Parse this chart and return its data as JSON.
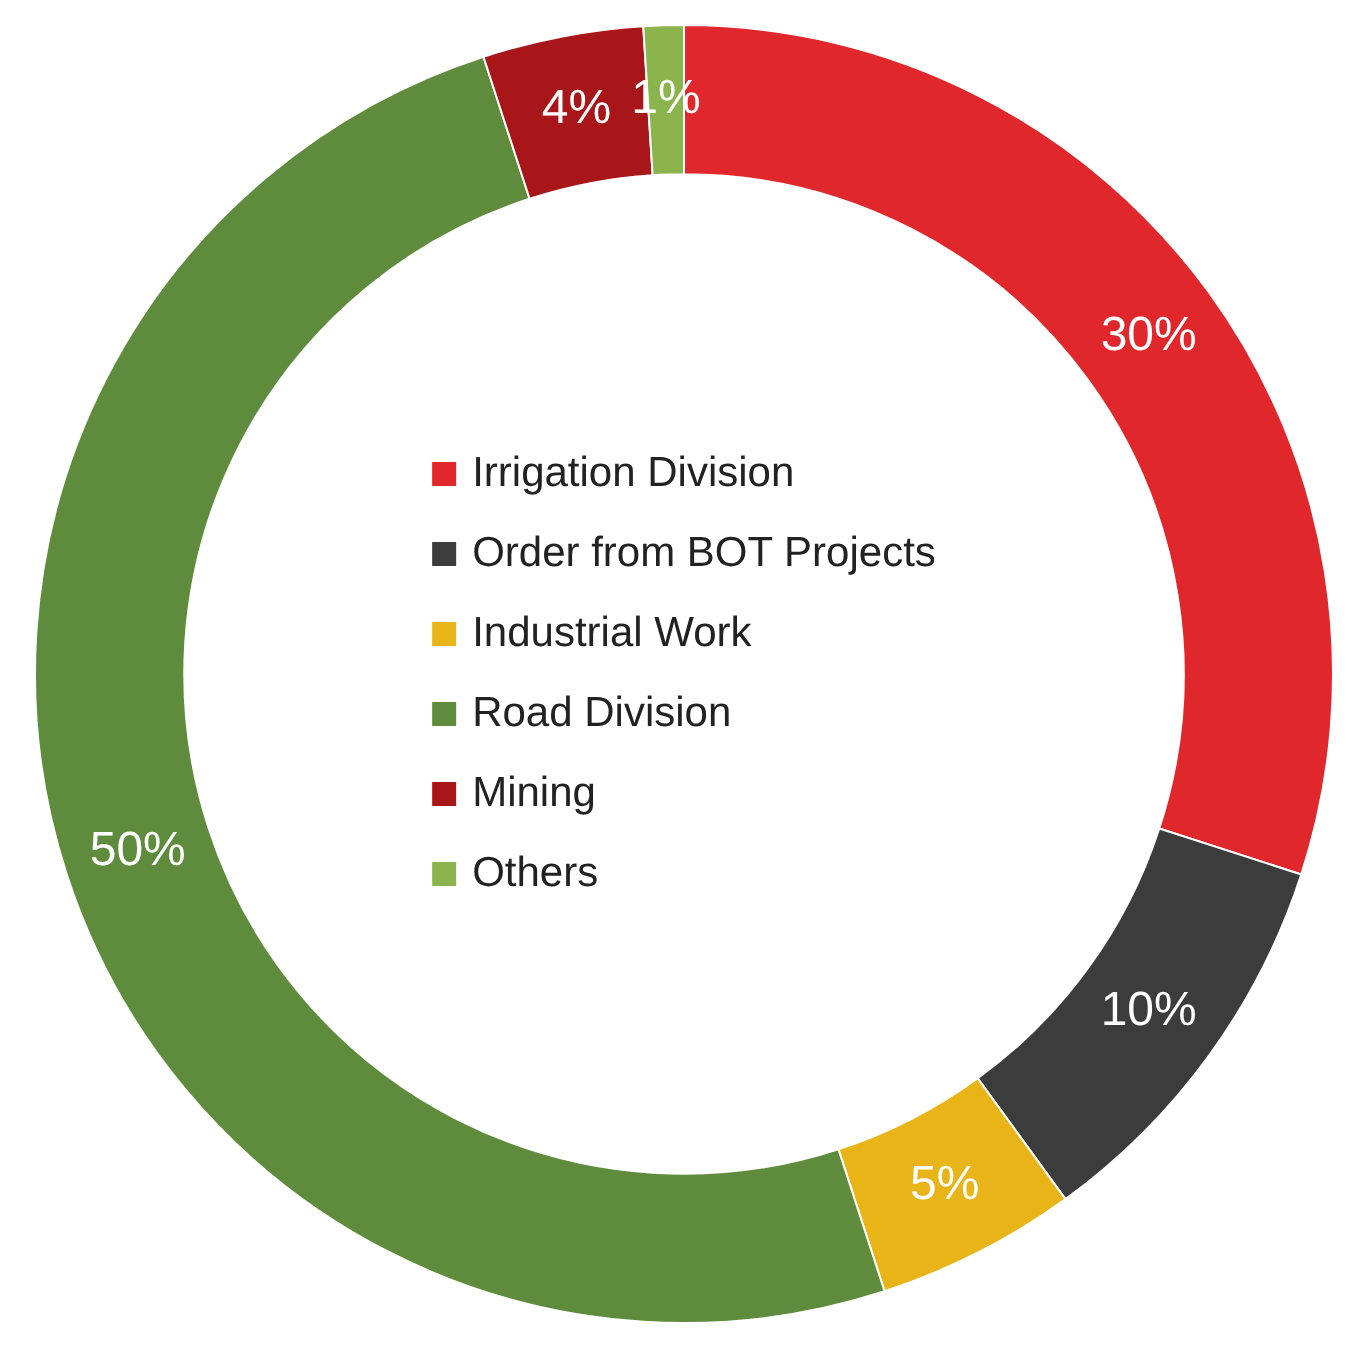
{
  "chart_data": {
    "type": "donut",
    "categories": [
      "Irrigation Division",
      "Order from BOT Projects",
      "Industrial Work",
      "Road Division",
      "Mining",
      "Others"
    ],
    "values": [
      30,
      10,
      5,
      50,
      4,
      1
    ],
    "colors": [
      "#e0282c",
      "#3c3c3c",
      "#e8b417",
      "#5e8c3c",
      "#a8161a",
      "#8cb44c"
    ],
    "value_labels": [
      "30%",
      "10%",
      "5%",
      "50%",
      "4%",
      "1%"
    ],
    "legend": "center"
  }
}
